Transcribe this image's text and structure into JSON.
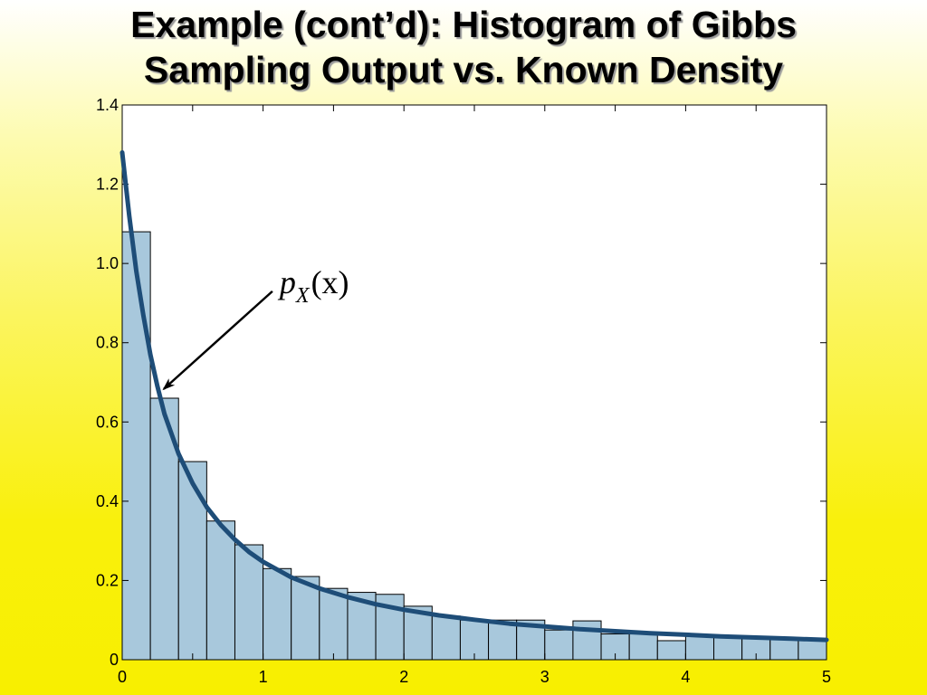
{
  "slide": {
    "title_line1": "Example (cont’d): Histogram of Gibbs",
    "title_line2": "Sampling Output vs. Known Density"
  },
  "chart_data": {
    "type": "bar",
    "title": "",
    "xlabel": "",
    "ylabel": "",
    "xlim": [
      0,
      5
    ],
    "ylim": [
      0,
      1.4
    ],
    "grid": false,
    "x_ticks": [
      0,
      1,
      2,
      3,
      4,
      5
    ],
    "x_tick_labels": [
      "0",
      "1",
      "2",
      "3",
      "4",
      "5"
    ],
    "y_ticks": [
      0,
      0.2,
      0.4,
      0.6,
      0.8,
      1.0,
      1.2,
      1.4
    ],
    "y_tick_labels": [
      "0",
      "0.2",
      "0.4",
      "0.6",
      "0.8",
      "1.0",
      "1.2",
      "1.4"
    ],
    "histogram": {
      "bin_edges": [
        0,
        0.2,
        0.4,
        0.6,
        0.8,
        1.0,
        1.2,
        1.4,
        1.6,
        1.8,
        2.0,
        2.2,
        2.4,
        2.6,
        2.8,
        3.0,
        3.2,
        3.4,
        3.6,
        3.8,
        4.0,
        4.2,
        4.4,
        4.6,
        4.8,
        5.0
      ],
      "values": [
        1.08,
        0.66,
        0.5,
        0.35,
        0.29,
        0.23,
        0.21,
        0.18,
        0.17,
        0.165,
        0.135,
        0.11,
        0.1,
        0.1,
        0.1,
        0.075,
        0.098,
        0.065,
        0.065,
        0.048,
        0.06,
        0.058,
        0.058,
        0.052,
        0.048
      ],
      "fill_color": "#a8c8dc",
      "edge_color": "#000000"
    },
    "density_curve": {
      "x": [
        0,
        0.05,
        0.1,
        0.15,
        0.2,
        0.25,
        0.3,
        0.4,
        0.5,
        0.6,
        0.7,
        0.8,
        0.9,
        1.0,
        1.2,
        1.4,
        1.6,
        1.8,
        2.0,
        2.25,
        2.5,
        2.75,
        3.0,
        3.25,
        3.5,
        3.75,
        4.0,
        4.25,
        4.5,
        4.75,
        5.0
      ],
      "y": [
        1.28,
        1.12,
        0.98,
        0.87,
        0.77,
        0.69,
        0.62,
        0.52,
        0.445,
        0.385,
        0.34,
        0.303,
        0.272,
        0.247,
        0.208,
        0.18,
        0.158,
        0.14,
        0.126,
        0.112,
        0.101,
        0.091,
        0.084,
        0.077,
        0.072,
        0.067,
        0.063,
        0.059,
        0.056,
        0.053,
        0.05
      ],
      "color": "#1e4d78"
    },
    "annotation": {
      "label_main": "p",
      "label_sub": "X",
      "label_arg": "(x)",
      "points_to_x": 0.25
    }
  }
}
